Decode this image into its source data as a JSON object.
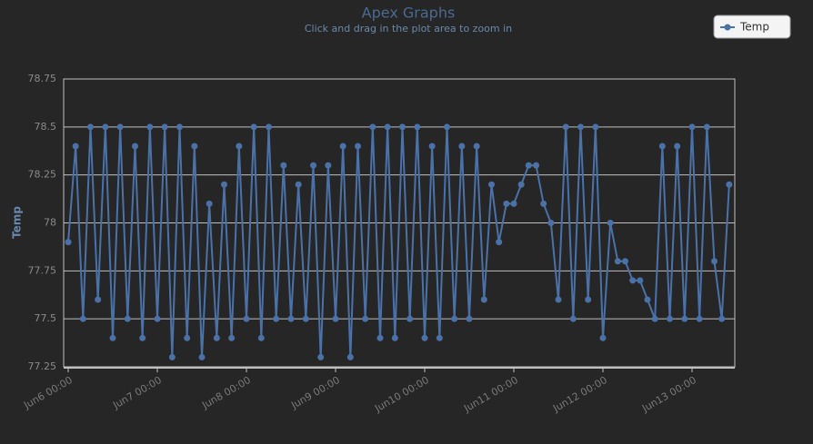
{
  "chart_data": {
    "type": "line",
    "title": "Apex Graphs",
    "subtitle": "Click and drag in the plot area to zoom in",
    "y_label": "Temp",
    "categories": [
      "Jun6 00:00",
      null,
      null,
      null,
      null,
      null,
      null,
      null,
      null,
      null,
      null,
      null,
      "Jun7 00:00",
      null,
      null,
      null,
      null,
      null,
      null,
      null,
      null,
      null,
      null,
      null,
      "Jun8 00:00",
      null,
      null,
      null,
      null,
      null,
      null,
      null,
      null,
      null,
      null,
      null,
      "Jun9 00:00",
      null,
      null,
      null,
      null,
      null,
      null,
      null,
      null,
      null,
      null,
      null,
      "Jun10 00:00",
      null,
      null,
      null,
      null,
      null,
      null,
      null,
      null,
      null,
      null,
      null,
      "Jun11 00:00",
      null,
      null,
      null,
      null,
      null,
      null,
      null,
      null,
      null,
      null,
      null,
      "Jun12 00:00",
      null,
      null,
      null,
      null,
      null,
      null,
      null,
      null,
      null,
      null,
      null,
      "Jun13 00:00",
      null,
      null,
      null,
      null,
      null
    ],
    "series": [
      {
        "name": "Temp",
        "color": "#4a72a8",
        "values": [
          77.9,
          78.4,
          77.5,
          78.5,
          77.6,
          78.5,
          77.4,
          78.5,
          77.5,
          78.4,
          77.4,
          78.5,
          77.5,
          78.5,
          77.3,
          78.5,
          77.4,
          78.4,
          77.3,
          78.1,
          77.4,
          78.2,
          77.4,
          78.4,
          77.5,
          78.5,
          77.4,
          78.5,
          77.5,
          78.3,
          77.5,
          78.2,
          77.5,
          78.3,
          77.3,
          78.3,
          77.5,
          78.4,
          77.3,
          78.4,
          77.5,
          78.5,
          77.4,
          78.5,
          77.4,
          78.5,
          77.5,
          78.5,
          77.4,
          78.4,
          77.4,
          78.5,
          77.5,
          78.4,
          77.5,
          78.4,
          77.6,
          78.2,
          77.9,
          78.1,
          78.1,
          78.2,
          78.3,
          78.3,
          78.1,
          78.0,
          77.6,
          78.5,
          77.5,
          78.5,
          77.6,
          78.5,
          77.4,
          78.0,
          77.8,
          77.8,
          77.7,
          77.7,
          77.6,
          77.5,
          78.4,
          77.5,
          78.4,
          77.5,
          78.5,
          77.5,
          78.5,
          77.8,
          77.5,
          78.2
        ]
      }
    ],
    "ylim": [
      77.25,
      78.75
    ],
    "yticks": [
      77.25,
      77.5,
      77.75,
      78,
      78.25,
      78.5,
      78.75
    ],
    "grid": true,
    "legend": "top-right"
  }
}
